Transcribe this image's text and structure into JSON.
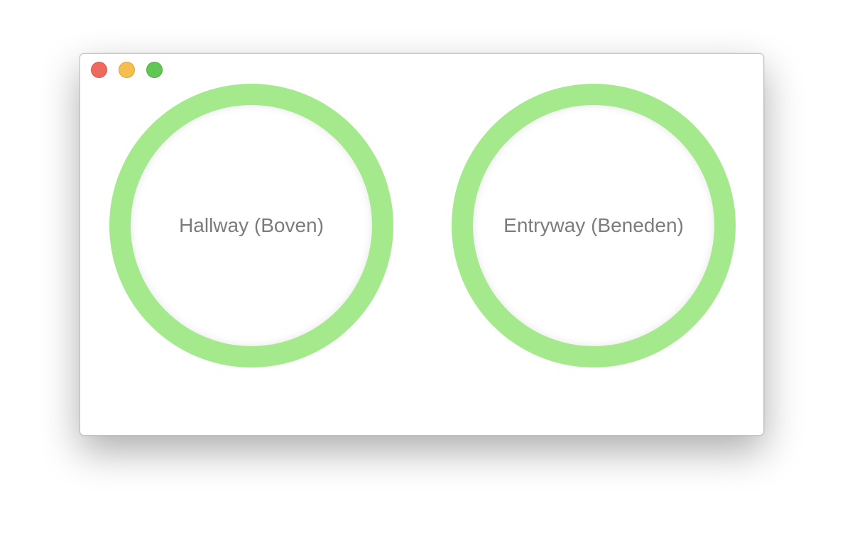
{
  "window": {
    "controls": [
      "close-button",
      "minimize-button",
      "zoom-button"
    ]
  },
  "rooms": [
    {
      "label": "Hallway (Boven)",
      "ring_color": "#a5e98d"
    },
    {
      "label": "Entryway (Beneden)",
      "ring_color": "#a5e98d"
    }
  ],
  "colors": {
    "close": "#ee6a5f",
    "minimize": "#f6be4f",
    "zoom": "#62c655",
    "label_text": "#7c7c7c"
  }
}
